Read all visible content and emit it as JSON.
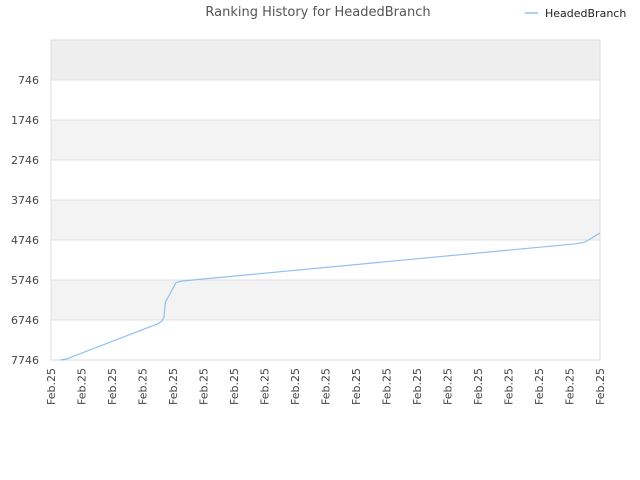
{
  "chart_data": {
    "type": "line",
    "title": "Ranking History for HeadedBranch",
    "xlabel": "",
    "ylabel": "",
    "y_inverted": true,
    "ylim": [
      7746,
      -254
    ],
    "y_ticks": [
      "746",
      "1746",
      "2746",
      "3746",
      "4746",
      "5746",
      "6746",
      "7746"
    ],
    "y_tick_values": [
      746,
      1746,
      2746,
      3746,
      4746,
      5746,
      6746,
      7746
    ],
    "x_ticks": [
      "Feb.25",
      "Feb.25",
      "Feb.25",
      "Feb.25",
      "Feb.25",
      "Feb.25",
      "Feb.25",
      "Feb.25",
      "Feb.25",
      "Feb.25",
      "Feb.25",
      "Feb.25",
      "Feb.25",
      "Feb.25",
      "Feb.25",
      "Feb.25",
      "Feb.25",
      "Feb.25",
      "Feb.25"
    ],
    "legend": {
      "position": "top-right"
    },
    "grid": true,
    "series": [
      {
        "name": "HeadedBranch",
        "color": "#90c0f0",
        "x": [
          0.3,
          0.5,
          3.5,
          3.65,
          3.7,
          3.75,
          4.1,
          4.3,
          17.2,
          17.5,
          18.0
        ],
        "values": [
          7746,
          7720,
          6840,
          6760,
          6690,
          6300,
          5810,
          5770,
          4840,
          4800,
          4570
        ]
      }
    ]
  }
}
